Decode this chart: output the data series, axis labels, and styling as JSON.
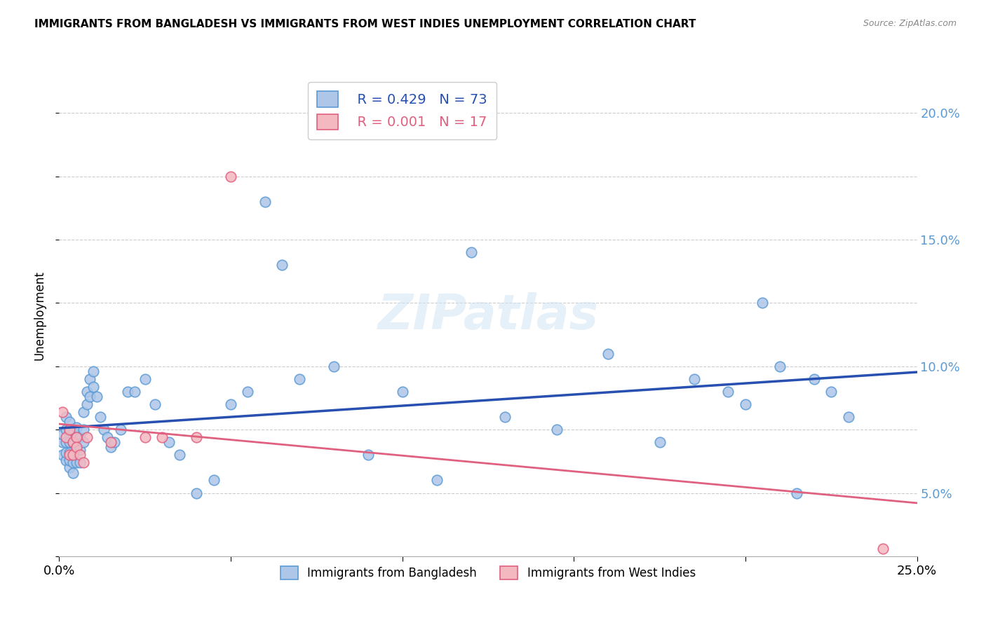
{
  "title": "IMMIGRANTS FROM BANGLADESH VS IMMIGRANTS FROM WEST INDIES UNEMPLOYMENT CORRELATION CHART",
  "source": "Source: ZipAtlas.com",
  "ylabel": "Unemployment",
  "xlim": [
    0.0,
    0.25
  ],
  "ylim": [
    0.025,
    0.215
  ],
  "xticks": [
    0.0,
    0.05,
    0.1,
    0.15,
    0.2,
    0.25
  ],
  "yticks_right": [
    0.05,
    0.075,
    0.1,
    0.125,
    0.15,
    0.175,
    0.2
  ],
  "grid_yticks": [
    0.05,
    0.075,
    0.1,
    0.125,
    0.15,
    0.175,
    0.2
  ],
  "bg_color": "#ffffff",
  "bangladesh_color": "#aec6e8",
  "bangladesh_edge_color": "#5b9bd5",
  "westindies_color": "#f4b8c1",
  "westindies_edge_color": "#e06080",
  "trendline_blue": "#2850b0",
  "trendline_pink": "#e06080",
  "R_bangladesh": 0.429,
  "N_bangladesh": 73,
  "R_westindies": 0.001,
  "N_westindies": 17,
  "legend_label_bangladesh": "Immigrants from Bangladesh",
  "legend_label_westindies": "Immigrants from West Indies",
  "watermark": "ZIPatlas",
  "bangladesh_x": [
    0.001,
    0.001,
    0.001,
    0.002,
    0.002,
    0.002,
    0.002,
    0.002,
    0.003,
    0.003,
    0.003,
    0.003,
    0.003,
    0.003,
    0.004,
    0.004,
    0.004,
    0.004,
    0.004,
    0.005,
    0.005,
    0.005,
    0.005,
    0.006,
    0.006,
    0.006,
    0.007,
    0.007,
    0.007,
    0.008,
    0.008,
    0.009,
    0.009,
    0.01,
    0.01,
    0.011,
    0.012,
    0.013,
    0.014,
    0.015,
    0.016,
    0.018,
    0.02,
    0.022,
    0.025,
    0.028,
    0.032,
    0.035,
    0.04,
    0.045,
    0.05,
    0.055,
    0.06,
    0.065,
    0.07,
    0.08,
    0.09,
    0.1,
    0.11,
    0.12,
    0.13,
    0.145,
    0.16,
    0.175,
    0.185,
    0.195,
    0.2,
    0.205,
    0.21,
    0.215,
    0.22,
    0.225,
    0.23
  ],
  "bangladesh_y": [
    0.065,
    0.07,
    0.073,
    0.063,
    0.066,
    0.07,
    0.075,
    0.08,
    0.06,
    0.063,
    0.066,
    0.07,
    0.074,
    0.078,
    0.058,
    0.062,
    0.065,
    0.07,
    0.074,
    0.062,
    0.067,
    0.072,
    0.076,
    0.062,
    0.067,
    0.072,
    0.07,
    0.075,
    0.082,
    0.085,
    0.09,
    0.088,
    0.095,
    0.092,
    0.098,
    0.088,
    0.08,
    0.075,
    0.072,
    0.068,
    0.07,
    0.075,
    0.09,
    0.09,
    0.095,
    0.085,
    0.07,
    0.065,
    0.05,
    0.055,
    0.085,
    0.09,
    0.165,
    0.14,
    0.095,
    0.1,
    0.065,
    0.09,
    0.055,
    0.145,
    0.08,
    0.075,
    0.105,
    0.07,
    0.095,
    0.09,
    0.085,
    0.125,
    0.1,
    0.05,
    0.095,
    0.09,
    0.08
  ],
  "westindies_x": [
    0.001,
    0.002,
    0.003,
    0.003,
    0.004,
    0.004,
    0.005,
    0.005,
    0.006,
    0.007,
    0.008,
    0.015,
    0.025,
    0.03,
    0.04,
    0.05,
    0.24
  ],
  "westindies_y": [
    0.082,
    0.072,
    0.065,
    0.075,
    0.07,
    0.065,
    0.072,
    0.068,
    0.065,
    0.062,
    0.072,
    0.07,
    0.072,
    0.072,
    0.072,
    0.175,
    0.028
  ]
}
